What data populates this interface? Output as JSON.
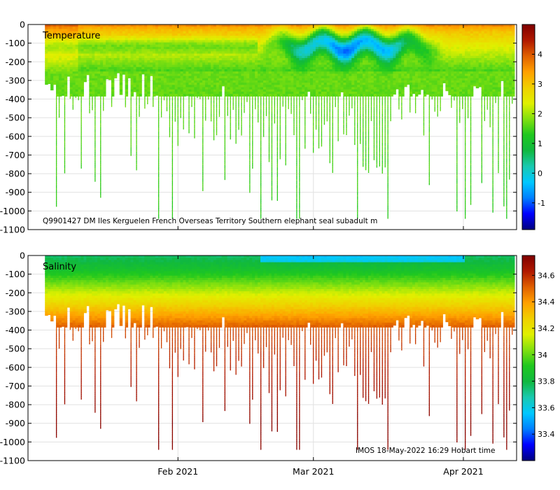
{
  "chart_data": [
    {
      "type": "heatmap",
      "title": "Temperature",
      "annotation": "Q9901427 DM Iles Kerguelen French Overseas Territory Southern elephant seal subadult m",
      "ylim": [
        -1100,
        0
      ],
      "y_ticks": [
        0,
        -100,
        -200,
        -300,
        -400,
        -500,
        -600,
        -700,
        -800,
        -900,
        -1000,
        -1100
      ],
      "y_tick_labels": [
        "0",
        "-100",
        "-200",
        "-300",
        "-400",
        "-500",
        "-600",
        "-700",
        "-800",
        "-900",
        "-1000",
        "-1100"
      ],
      "xlim_days": [
        0,
        101
      ],
      "x_ticks_days": [
        31,
        59,
        90
      ],
      "x_tick_labels": [
        "",
        "",
        ""
      ],
      "colorbar": {
        "range": [
          -1.9,
          5.0
        ],
        "ticks": [
          4,
          3,
          2,
          1,
          0,
          -1
        ],
        "tick_labels": [
          "4",
          "3",
          "2",
          "1",
          "0",
          "-1"
        ],
        "colormap": [
          "#00007f",
          "#0000ff",
          "#007fff",
          "#00c8ff",
          "#19c9b0",
          "#10b840",
          "#1fc81f",
          "#80e010",
          "#e0f000",
          "#f0d000",
          "#ffa000",
          "#e06000",
          "#b01800",
          "#7f0000"
        ]
      },
      "profile_days_range": [
        3.5,
        100
      ],
      "notes": "Warm (2-4) near surface, cooling to ~1.5-2 at depth; cold subsurface layer (-1 to 0) between ~40-150 m from late Feb to mid Mar"
    },
    {
      "type": "heatmap",
      "title": "Salinity",
      "annotation": "IMOS 18-May-2022 16:29 Hobart time",
      "ylim": [
        -1100,
        0
      ],
      "y_ticks": [
        0,
        -100,
        -200,
        -300,
        -400,
        -500,
        -600,
        -700,
        -800,
        -900,
        -1000,
        -1100
      ],
      "y_tick_labels": [
        "0",
        "-100",
        "-200",
        "-300",
        "-400",
        "-500",
        "-600",
        "-700",
        "-800",
        "-900",
        "-1000",
        "-1100"
      ],
      "xlim_days": [
        0,
        101
      ],
      "x_ticks_days": [
        31,
        59,
        90
      ],
      "x_tick_labels": [
        "Feb 2021",
        "Mar 2021",
        "Apr 2021"
      ],
      "colorbar": {
        "range": [
          33.2,
          34.75
        ],
        "ticks": [
          34.6,
          34.4,
          34.2,
          34,
          33.8,
          33.6,
          33.4
        ],
        "tick_labels": [
          "34.6",
          "34.4",
          "34.2",
          "34",
          "33.8",
          "33.6",
          "33.4"
        ],
        "colormap": [
          "#00007f",
          "#0000ff",
          "#007fff",
          "#00c8ff",
          "#19c9b0",
          "#10b840",
          "#1fc81f",
          "#80e010",
          "#e0f000",
          "#f0d000",
          "#ffa000",
          "#e06000",
          "#b01800",
          "#7f0000"
        ]
      },
      "profile_days_range": [
        3.5,
        100
      ],
      "notes": "Fresh (33.7-34) near surface, saline (34.5-34.7) at depth"
    }
  ]
}
